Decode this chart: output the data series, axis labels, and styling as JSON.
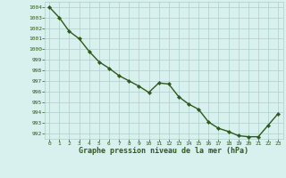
{
  "x": [
    0,
    1,
    2,
    3,
    4,
    5,
    6,
    7,
    8,
    9,
    10,
    11,
    12,
    13,
    14,
    15,
    16,
    17,
    18,
    19,
    20,
    21,
    22,
    23
  ],
  "y": [
    1004.0,
    1003.0,
    1001.7,
    1001.0,
    999.8,
    998.8,
    998.2,
    997.5,
    997.0,
    996.5,
    995.9,
    996.8,
    996.7,
    995.5,
    994.8,
    994.3,
    993.1,
    992.5,
    992.2,
    991.8,
    991.7,
    991.7,
    992.8,
    993.9
  ],
  "line_color": "#2d5a1b",
  "marker_color": "#2d5a1b",
  "bg_color": "#d8f0ee",
  "grid_color": "#aececa",
  "xlabel": "Graphe pression niveau de la mer (hPa)",
  "xlabel_color": "#2d5a1b",
  "tick_color": "#2d5a1b",
  "ylim_min": 991.5,
  "ylim_max": 1004.5
}
